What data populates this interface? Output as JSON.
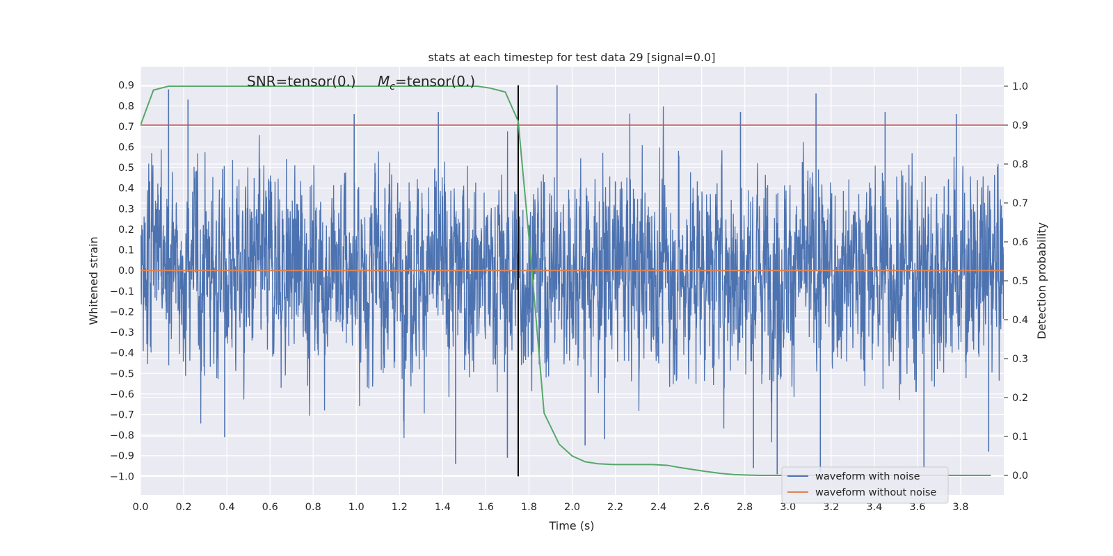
{
  "chart_data": {
    "type": "line",
    "title": "stats at each timestep for test data 29 [signal=0.0]",
    "xlabel": "Time (s)",
    "ylabel": "Whitened strain",
    "y2label": "Detection probability",
    "xlim": [
      0.0,
      4.0
    ],
    "ylim": [
      -1.09,
      0.99
    ],
    "y2lim": [
      -0.05,
      1.05
    ],
    "x_ticks": [
      0.0,
      0.2,
      0.4,
      0.6,
      0.8,
      1.0,
      1.2,
      1.4,
      1.6,
      1.8,
      2.0,
      2.2,
      2.4,
      2.6,
      2.8,
      3.0,
      3.2,
      3.4,
      3.6,
      3.8
    ],
    "x_tick_labels": [
      "0.0",
      "0.2",
      "0.4",
      "0.6",
      "0.8",
      "1.0",
      "1.2",
      "1.4",
      "1.6",
      "1.8",
      "2.0",
      "2.2",
      "2.4",
      "2.6",
      "2.8",
      "3.0",
      "3.2",
      "3.4",
      "3.6",
      "3.8"
    ],
    "y_ticks": [
      0.9,
      0.8,
      0.7,
      0.6,
      0.5,
      0.4,
      0.3,
      0.2,
      0.1,
      0.0,
      -0.1,
      -0.2,
      -0.3,
      -0.4,
      -0.5,
      -0.6,
      -0.7,
      -0.8,
      -0.9,
      -1.0
    ],
    "y_tick_labels": [
      "0.9",
      "0.8",
      "0.7",
      "0.6",
      "0.5",
      "0.4",
      "0.3",
      "0.2",
      "0.1",
      "0.0",
      "−0.1",
      "−0.2",
      "−0.3",
      "−0.4",
      "−0.5",
      "−0.6",
      "−0.7",
      "−0.8",
      "−0.9",
      "−1.0"
    ],
    "y2_ticks": [
      1.0,
      0.9,
      0.8,
      0.7,
      0.6,
      0.5,
      0.4,
      0.3,
      0.2,
      0.1,
      0.0
    ],
    "y2_tick_labels": [
      "1.0",
      "0.9",
      "0.8",
      "0.7",
      "0.6",
      "0.5",
      "0.4",
      "0.3",
      "0.2",
      "0.1",
      "0.0"
    ],
    "grid": true,
    "legend_position": "lower-right",
    "annotation_snr": "SNR=tensor(0.)",
    "annotation_mc_symbol": "M",
    "annotation_mc_subscript": "c",
    "annotation_mc_value": "=tensor(0.)",
    "series": [
      {
        "name": "waveform with noise",
        "color": "#4c72b0",
        "kind": "noise",
        "x_range": [
          0.0,
          4.0
        ],
        "samples": 4096,
        "approx_envelope": [
          -1.0,
          0.9
        ],
        "typical_peak_range": [
          0.35,
          0.6
        ],
        "notable_peaks": [
          {
            "x": 0.13,
            "y": 0.88
          },
          {
            "x": 0.22,
            "y": 0.83
          },
          {
            "x": 0.39,
            "y": -0.81
          },
          {
            "x": 0.99,
            "y": 0.76
          },
          {
            "x": 1.38,
            "y": 0.77
          },
          {
            "x": 1.46,
            "y": -0.94
          },
          {
            "x": 1.7,
            "y": -0.91
          },
          {
            "x": 1.93,
            "y": 0.9
          },
          {
            "x": 2.06,
            "y": -0.85
          },
          {
            "x": 2.15,
            "y": -0.82
          },
          {
            "x": 2.78,
            "y": 0.77
          },
          {
            "x": 2.84,
            "y": -0.96
          },
          {
            "x": 2.95,
            "y": -0.99
          },
          {
            "x": 3.13,
            "y": 0.86
          },
          {
            "x": 3.15,
            "y": -0.98
          },
          {
            "x": 3.45,
            "y": 0.77
          },
          {
            "x": 3.63,
            "y": -0.96
          },
          {
            "x": 3.78,
            "y": 0.76
          },
          {
            "x": 3.93,
            "y": -0.88
          }
        ]
      },
      {
        "name": "waveform without noise",
        "color": "#dd8452",
        "x": [
          0.0,
          4.0
        ],
        "y": [
          0.0,
          0.0
        ]
      },
      {
        "name": "",
        "axis": "y2",
        "color": "#55a868",
        "x": [
          0.0,
          0.06,
          0.13,
          0.2,
          0.3,
          0.4,
          0.5,
          0.6,
          0.7,
          0.8,
          0.9,
          1.0,
          1.1,
          1.2,
          1.3,
          1.4,
          1.5,
          1.56,
          1.62,
          1.69,
          1.75,
          1.81,
          1.87,
          1.94,
          2.0,
          2.06,
          2.12,
          2.19,
          2.25,
          2.31,
          2.37,
          2.44,
          2.5,
          2.56,
          2.62,
          2.69,
          2.75,
          2.81,
          2.87,
          2.94,
          3.0,
          3.2,
          3.4,
          3.6,
          3.8,
          3.94
        ],
        "y": [
          0.9,
          0.99,
          1.0,
          1.0,
          1.0,
          1.0,
          1.0,
          1.0,
          1.0,
          1.0,
          1.0,
          1.0,
          1.0,
          1.0,
          1.0,
          1.0,
          1.0,
          1.0,
          0.995,
          0.985,
          0.91,
          0.55,
          0.16,
          0.08,
          0.05,
          0.035,
          0.03,
          0.028,
          0.028,
          0.028,
          0.028,
          0.026,
          0.02,
          0.015,
          0.01,
          0.005,
          0.002,
          0.001,
          0.0,
          0.0,
          0.0,
          0.0,
          0.0,
          0.0,
          0.0,
          0.0
        ]
      }
    ],
    "hlines": [
      {
        "axis": "y2",
        "y": 0.9,
        "color": "#c44e52"
      }
    ],
    "vlines": [
      {
        "x": 1.75,
        "ymin": -1.0,
        "ymax": 0.9,
        "color": "#000000"
      }
    ]
  }
}
